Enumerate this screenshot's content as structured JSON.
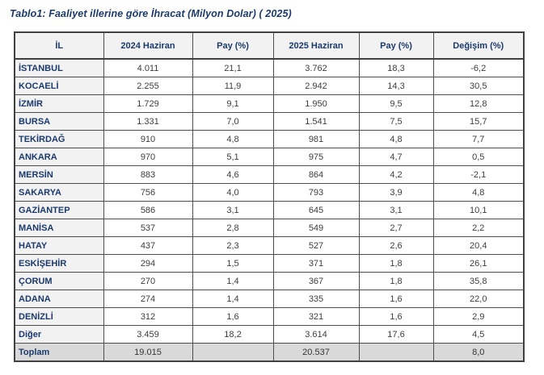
{
  "title": "Tablo1: Faaliyet illerine göre İhracat (Milyon Dolar) ( 2025)",
  "table": {
    "headers": [
      "İL",
      "2024 Haziran",
      "Pay (%)",
      "2025 Haziran",
      "Pay (%)",
      "Değişim (%)"
    ],
    "rows": [
      [
        "İSTANBUL",
        "4.011",
        "21,1",
        "3.762",
        "18,3",
        "-6,2"
      ],
      [
        "KOCAELİ",
        "2.255",
        "11,9",
        "2.942",
        "14,3",
        "30,5"
      ],
      [
        "İZMİR",
        "1.729",
        "9,1",
        "1.950",
        "9,5",
        "12,8"
      ],
      [
        "BURSA",
        "1.331",
        "7,0",
        "1.541",
        "7,5",
        "15,7"
      ],
      [
        "TEKİRDAĞ",
        "910",
        "4,8",
        "981",
        "4,8",
        "7,7"
      ],
      [
        "ANKARA",
        "970",
        "5,1",
        "975",
        "4,7",
        "0,5"
      ],
      [
        "MERSİN",
        "883",
        "4,6",
        "864",
        "4,2",
        "-2,1"
      ],
      [
        "SAKARYA",
        "756",
        "4,0",
        "793",
        "3,9",
        "4,8"
      ],
      [
        "GAZİANTEP",
        "586",
        "3,1",
        "645",
        "3,1",
        "10,1"
      ],
      [
        "MANİSA",
        "537",
        "2,8",
        "549",
        "2,7",
        "2,2"
      ],
      [
        "HATAY",
        "437",
        "2,3",
        "527",
        "2,6",
        "20,4"
      ],
      [
        "ESKİŞEHİR",
        "294",
        "1,5",
        "371",
        "1,8",
        "26,1"
      ],
      [
        "ÇORUM",
        "270",
        "1,4",
        "367",
        "1,8",
        "35,8"
      ],
      [
        "ADANA",
        "274",
        "1,4",
        "335",
        "1,6",
        "22,0"
      ],
      [
        "DENİZLİ",
        "312",
        "1,6",
        "321",
        "1,6",
        "2,9"
      ],
      [
        "Diğer",
        "3.459",
        "18,2",
        "3.614",
        "17,6",
        "4,5"
      ]
    ],
    "total_row": [
      "Toplam",
      "19.015",
      "",
      "20.537",
      "",
      "8,0"
    ]
  },
  "colors": {
    "title_text": "#1b3a6b",
    "header_bg": "#f2f2f2",
    "province_col_bg": "#f2f2f2",
    "total_row_bg": "#d9d9d9",
    "number_text": "#3d3d3d",
    "border": "#4d4d4d"
  }
}
